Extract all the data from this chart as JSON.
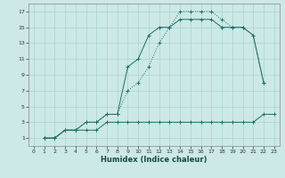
{
  "xlabel": "Humidex (Indice chaleur)",
  "bg_color": "#cce9e7",
  "grid_color": "#aad4d0",
  "line_color": "#1a6e64",
  "xlim": [
    -0.5,
    23.5
  ],
  "ylim": [
    0.0,
    18.0
  ],
  "xticks": [
    0,
    1,
    2,
    3,
    4,
    5,
    6,
    7,
    8,
    9,
    10,
    11,
    12,
    13,
    14,
    15,
    16,
    17,
    18,
    19,
    20,
    21,
    22,
    23
  ],
  "yticks": [
    1,
    3,
    5,
    7,
    9,
    11,
    13,
    15,
    17
  ],
  "line1_x": [
    1,
    2,
    3,
    4,
    5,
    6,
    7,
    8,
    9,
    10,
    11,
    12,
    13,
    14,
    15,
    16,
    17,
    18,
    19,
    20,
    21,
    22,
    23
  ],
  "line1_y": [
    1,
    1,
    2,
    2,
    2,
    2,
    3,
    3,
    3,
    3,
    3,
    3,
    3,
    3,
    3,
    3,
    3,
    3,
    3,
    3,
    3,
    4,
    4
  ],
  "line2_x": [
    1,
    2,
    3,
    4,
    5,
    6,
    7,
    8,
    9,
    10,
    11,
    12,
    13,
    14,
    15,
    16,
    17,
    18,
    19,
    20,
    21,
    22
  ],
  "line2_y": [
    1,
    1,
    2,
    2,
    3,
    3,
    4,
    4,
    7,
    8,
    10,
    13,
    15,
    17,
    17,
    17,
    17,
    16,
    15,
    15,
    14,
    8
  ],
  "line3_x": [
    1,
    2,
    3,
    4,
    5,
    6,
    7,
    8,
    9,
    10,
    11,
    12,
    13,
    14,
    15,
    16,
    17,
    18,
    19,
    20,
    21,
    22
  ],
  "line3_y": [
    1,
    1,
    2,
    2,
    3,
    3,
    4,
    4,
    10,
    11,
    14,
    15,
    15,
    16,
    16,
    16,
    16,
    15,
    15,
    15,
    14,
    8
  ]
}
